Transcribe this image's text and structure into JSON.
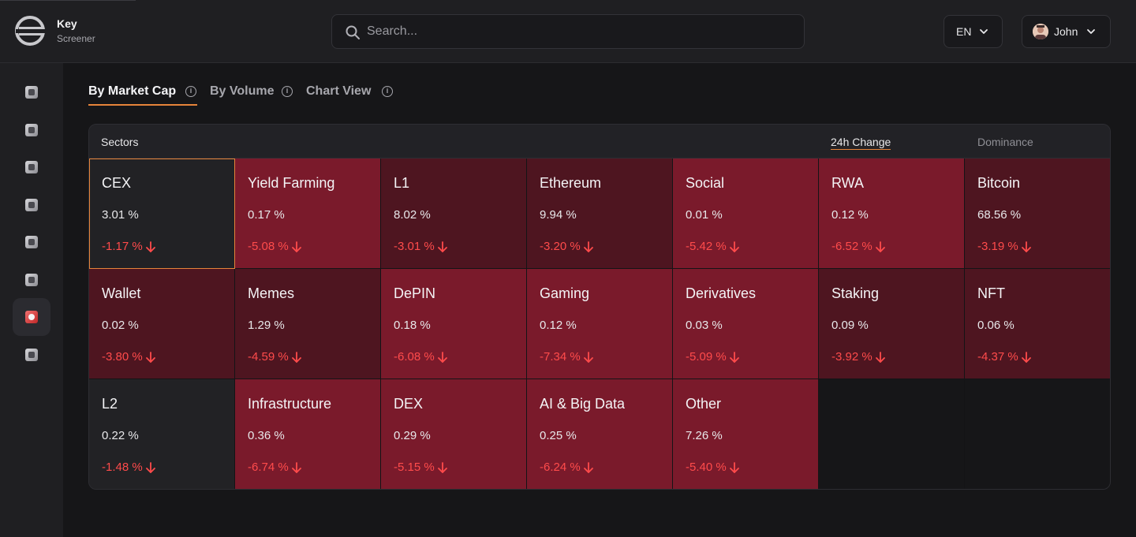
{
  "app": {
    "name": "Key",
    "subtitle": "Screener"
  },
  "search": {
    "placeholder": "Search..."
  },
  "language": {
    "selected": "EN"
  },
  "user": {
    "name": "John"
  },
  "sidebar": {
    "items": [
      {
        "icon": "home-icon"
      },
      {
        "icon": "chart-icon"
      },
      {
        "icon": "search-icon"
      },
      {
        "icon": "dollar-icon"
      },
      {
        "icon": "grid-icon"
      },
      {
        "icon": "building-icon"
      },
      {
        "icon": "sectors-icon",
        "active": true
      },
      {
        "icon": "lock-icon"
      }
    ]
  },
  "tabs": [
    {
      "label": "By Market Cap",
      "active": true
    },
    {
      "label": "By Volume",
      "active": false
    },
    {
      "label": "Chart View",
      "active": false
    }
  ],
  "table": {
    "header": {
      "sectors": "Sectors",
      "change": "24h Change",
      "dominance": "Dominance"
    },
    "cells": [
      {
        "name": "CEX",
        "dominance": "3.01 %",
        "change": "-1.17 %",
        "color": "#222225",
        "selected": true
      },
      {
        "name": "Yield Farming",
        "dominance": "0.17 %",
        "change": "-5.08 %",
        "color": "#7a1a2b"
      },
      {
        "name": "L1",
        "dominance": "8.02 %",
        "change": "-3.01 %",
        "color": "#4e1520"
      },
      {
        "name": "Ethereum",
        "dominance": "9.94 %",
        "change": "-3.20 %",
        "color": "#4e1520"
      },
      {
        "name": "Social",
        "dominance": "0.01 %",
        "change": "-5.42 %",
        "color": "#7a1a2b"
      },
      {
        "name": "RWA",
        "dominance": "0.12 %",
        "change": "-6.52 %",
        "color": "#7a1a2b"
      },
      {
        "name": "Bitcoin",
        "dominance": "68.56 %",
        "change": "-3.19 %",
        "color": "#4e1520"
      },
      {
        "name": "Wallet",
        "dominance": "0.02 %",
        "change": "-3.80 %",
        "color": "#4e1520"
      },
      {
        "name": "Memes",
        "dominance": "1.29 %",
        "change": "-4.59 %",
        "color": "#4e1520"
      },
      {
        "name": "DePIN",
        "dominance": "0.18 %",
        "change": "-6.08 %",
        "color": "#7a1a2b"
      },
      {
        "name": "Gaming",
        "dominance": "0.12 %",
        "change": "-7.34 %",
        "color": "#7a1a2b"
      },
      {
        "name": "Derivatives",
        "dominance": "0.03 %",
        "change": "-5.09 %",
        "color": "#7a1a2b"
      },
      {
        "name": "Staking",
        "dominance": "0.09 %",
        "change": "-3.92 %",
        "color": "#4e1520"
      },
      {
        "name": "NFT",
        "dominance": "0.06 %",
        "change": "-4.37 %",
        "color": "#4e1520"
      },
      {
        "name": "L2",
        "dominance": "0.22 %",
        "change": "-1.48 %",
        "color": "#222225"
      },
      {
        "name": "Infrastructure",
        "dominance": "0.36 %",
        "change": "-6.74 %",
        "color": "#7a1a2b"
      },
      {
        "name": "DEX",
        "dominance": "0.29 %",
        "change": "-5.15 %",
        "color": "#7a1a2b"
      },
      {
        "name": "AI & Big Data",
        "dominance": "0.25 %",
        "change": "-6.24 %",
        "color": "#7a1a2b"
      },
      {
        "name": "Other",
        "dominance": "7.26 %",
        "change": "-5.40 %",
        "color": "#7a1a2b"
      }
    ]
  }
}
